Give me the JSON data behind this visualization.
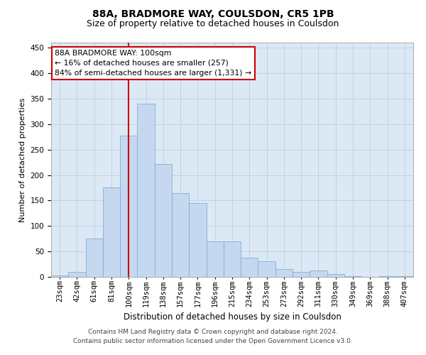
{
  "title1": "88A, BRADMORE WAY, COULSDON, CR5 1PB",
  "title2": "Size of property relative to detached houses in Coulsdon",
  "xlabel": "Distribution of detached houses by size in Coulsdon",
  "ylabel": "Number of detached properties",
  "categories": [
    "23sqm",
    "42sqm",
    "61sqm",
    "81sqm",
    "100sqm",
    "119sqm",
    "138sqm",
    "157sqm",
    "177sqm",
    "196sqm",
    "215sqm",
    "234sqm",
    "253sqm",
    "273sqm",
    "292sqm",
    "311sqm",
    "330sqm",
    "349sqm",
    "369sqm",
    "388sqm",
    "407sqm"
  ],
  "values": [
    3,
    10,
    75,
    175,
    278,
    340,
    222,
    165,
    145,
    70,
    70,
    37,
    30,
    15,
    10,
    13,
    6,
    2,
    0,
    2,
    1
  ],
  "bar_color": "#c5d8f0",
  "bar_edge_color": "#7fafd6",
  "property_line_index": 4,
  "property_line_color": "#cc0000",
  "annotation_line1": "88A BRADMORE WAY: 100sqm",
  "annotation_line2": "← 16% of detached houses are smaller (257)",
  "annotation_line3": "84% of semi-detached houses are larger (1,331) →",
  "annotation_box_color": "#ffffff",
  "annotation_box_edge_color": "#cc0000",
  "ylim": [
    0,
    460
  ],
  "yticks": [
    0,
    50,
    100,
    150,
    200,
    250,
    300,
    350,
    400,
    450
  ],
  "footer1": "Contains HM Land Registry data © Crown copyright and database right 2024.",
  "footer2": "Contains public sector information licensed under the Open Government Licence v3.0.",
  "bg_color": "#ffffff",
  "plot_bg_color": "#dce9f5",
  "grid_color": "#b8cfe8",
  "title1_fontsize": 10,
  "title2_fontsize": 9,
  "xlabel_fontsize": 8.5,
  "ylabel_fontsize": 8,
  "tick_fontsize": 7.5,
  "footer_fontsize": 6.5,
  "annotation_fontsize": 7.8
}
